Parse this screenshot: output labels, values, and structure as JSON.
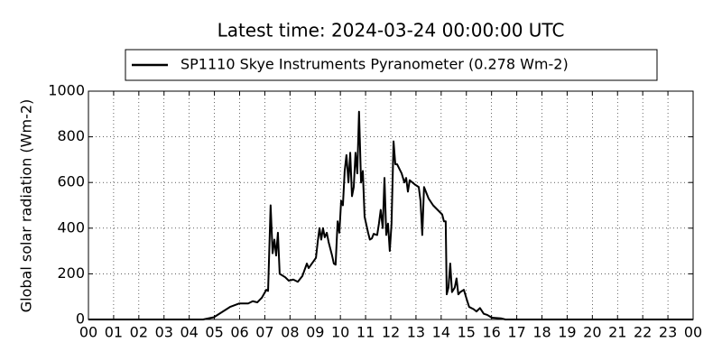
{
  "chart_data": {
    "type": "line",
    "title": "Latest time: 2024-03-24 00:00:00 UTC",
    "y_label": "Global solar radiation (Wm-2)",
    "legend": "top",
    "grid": true,
    "xlim": [
      0,
      24
    ],
    "ylim": [
      0,
      1000
    ],
    "yticks": [
      0,
      200,
      400,
      600,
      800,
      1000
    ],
    "xticks": [
      {
        "value": 0,
        "label": "00"
      },
      {
        "value": 1,
        "label": "01"
      },
      {
        "value": 2,
        "label": "02"
      },
      {
        "value": 3,
        "label": "03"
      },
      {
        "value": 4,
        "label": "04"
      },
      {
        "value": 5,
        "label": "05"
      },
      {
        "value": 6,
        "label": "06"
      },
      {
        "value": 7,
        "label": "07"
      },
      {
        "value": 8,
        "label": "08"
      },
      {
        "value": 9,
        "label": "09"
      },
      {
        "value": 10,
        "label": "10"
      },
      {
        "value": 11,
        "label": "11"
      },
      {
        "value": 12,
        "label": "12"
      },
      {
        "value": 13,
        "label": "13"
      },
      {
        "value": 14,
        "label": "14"
      },
      {
        "value": 15,
        "label": "15"
      },
      {
        "value": 16,
        "label": "16"
      },
      {
        "value": 17,
        "label": "17"
      },
      {
        "value": 18,
        "label": "18"
      },
      {
        "value": 19,
        "label": "19"
      },
      {
        "value": 20,
        "label": "20"
      },
      {
        "value": 21,
        "label": "21"
      },
      {
        "value": 22,
        "label": "22"
      },
      {
        "value": 23,
        "label": "23"
      },
      {
        "value": 24,
        "label": "00"
      }
    ],
    "x": [
      0,
      4.55,
      4.98,
      5.62,
      5.98,
      6.34,
      6.52,
      6.7,
      6.88,
      7.06,
      7.13,
      7.23,
      7.31,
      7.38,
      7.45,
      7.52,
      7.59,
      7.81,
      7.95,
      8.13,
      8.31,
      8.49,
      8.67,
      8.74,
      9.03,
      9.1,
      9.17,
      9.24,
      9.31,
      9.38,
      9.46,
      9.53,
      9.67,
      9.74,
      9.81,
      9.89,
      9.96,
      10.03,
      10.1,
      10.17,
      10.24,
      10.32,
      10.39,
      10.46,
      10.53,
      10.6,
      10.67,
      10.74,
      10.82,
      10.89,
      10.96,
      11.1,
      11.17,
      11.25,
      11.32,
      11.46,
      11.53,
      11.6,
      11.68,
      11.75,
      11.82,
      11.89,
      11.96,
      12.03,
      12.11,
      12.18,
      12.25,
      12.43,
      12.54,
      12.61,
      12.68,
      12.75,
      12.97,
      13.11,
      13.18,
      13.25,
      13.32,
      13.5,
      13.68,
      14.04,
      14.11,
      14.18,
      14.22,
      14.29,
      14.36,
      14.43,
      14.54,
      14.61,
      14.68,
      14.76,
      14.9,
      15.01,
      15.11,
      15.29,
      15.4,
      15.54,
      15.69,
      15.83,
      16.01,
      16.37,
      16.55,
      24
    ],
    "series": [
      {
        "name": "SP1110 Skye Instruments Pyranometer (0.278 Wm-2)",
        "color": "#000000",
        "values": [
          0,
          0,
          10,
          55,
          70,
          70,
          80,
          75,
          95,
          130,
          125,
          500,
          290,
          350,
          280,
          380,
          200,
          185,
          170,
          175,
          165,
          190,
          245,
          225,
          270,
          340,
          400,
          350,
          400,
          360,
          380,
          340,
          280,
          245,
          240,
          430,
          380,
          520,
          500,
          650,
          720,
          600,
          730,
          540,
          580,
          730,
          640,
          910,
          600,
          650,
          450,
          380,
          350,
          355,
          375,
          370,
          420,
          480,
          400,
          620,
          370,
          420,
          300,
          420,
          780,
          680,
          680,
          640,
          600,
          620,
          560,
          610,
          590,
          580,
          520,
          370,
          580,
          530,
          500,
          460,
          430,
          430,
          110,
          140,
          245,
          120,
          140,
          180,
          110,
          120,
          130,
          90,
          55,
          45,
          35,
          50,
          25,
          20,
          8,
          5,
          0,
          0
        ]
      }
    ]
  }
}
